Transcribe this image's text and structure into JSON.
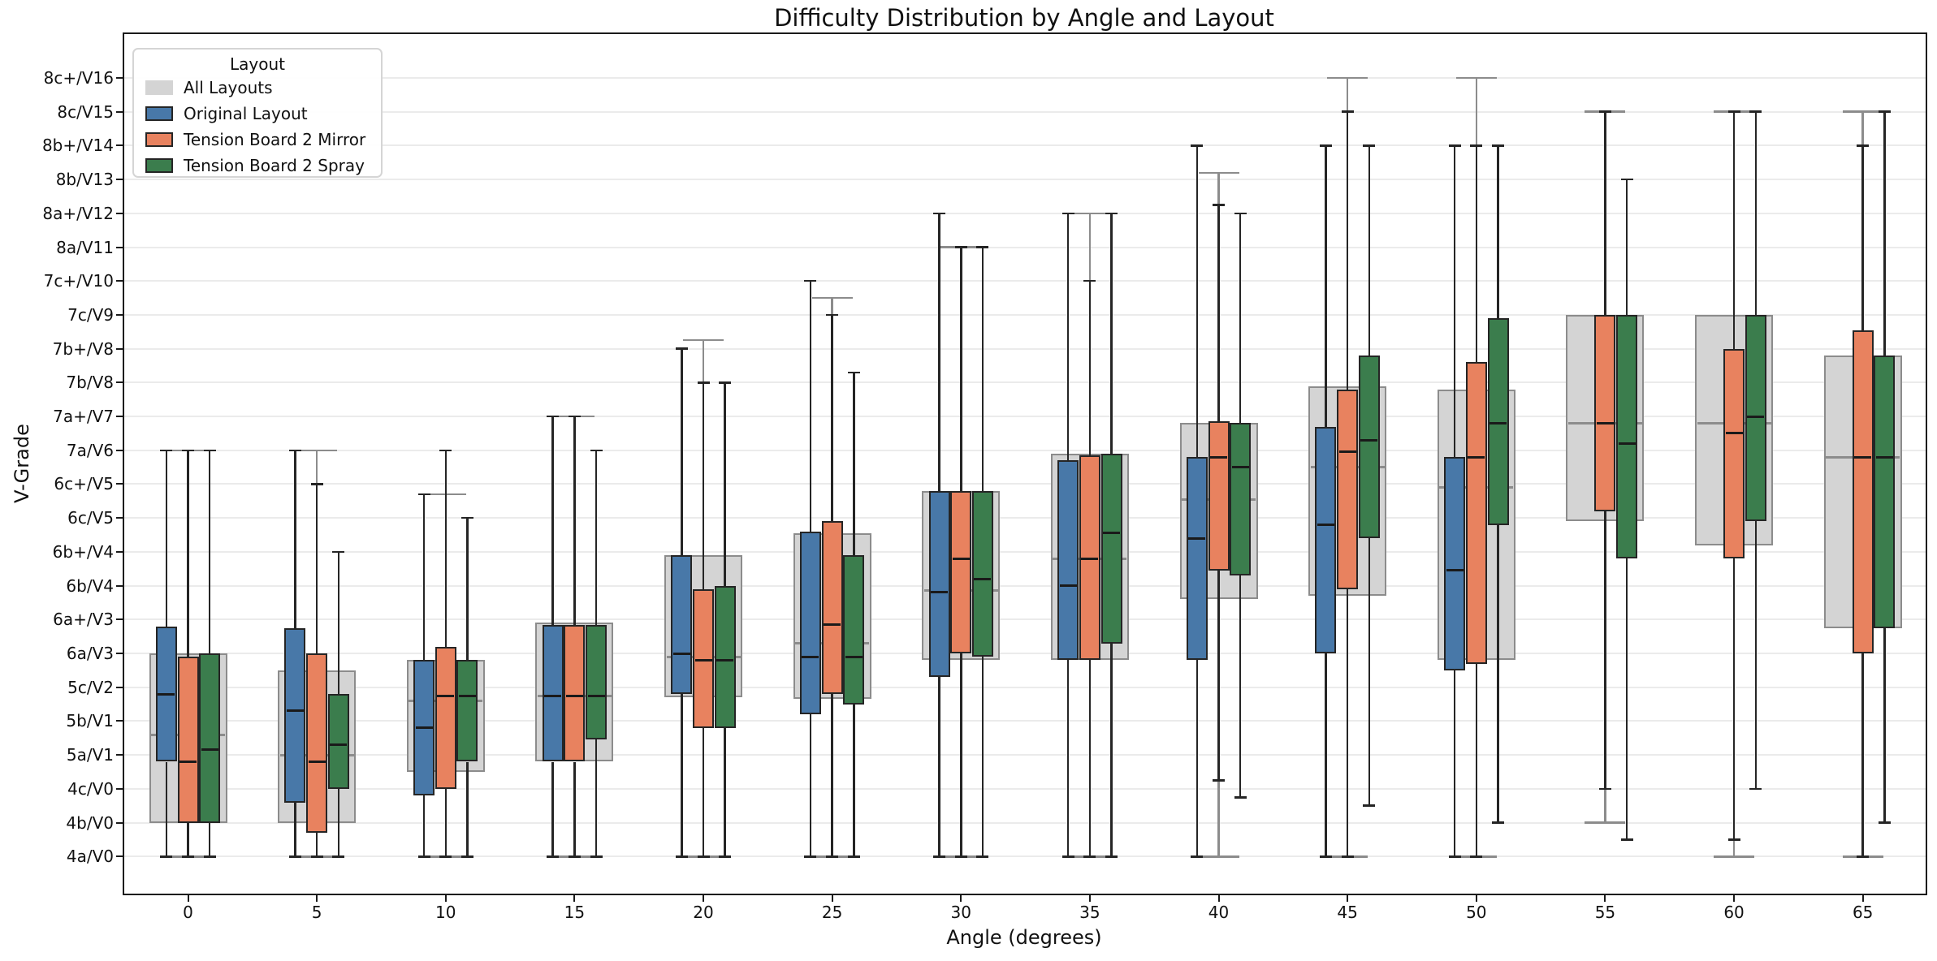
{
  "chart_data": {
    "type": "grouped_boxplot",
    "title": "Difficulty Distribution by Angle and Layout",
    "xlabel": "Angle (degrees)",
    "ylabel": "V-Grade",
    "legend": {
      "title": "Layout",
      "position": "upper-left"
    },
    "grid": "horizontal-light",
    "x_categories": [
      0,
      5,
      10,
      15,
      20,
      25,
      30,
      35,
      40,
      45,
      50,
      55,
      60,
      65
    ],
    "y_tick_labels": [
      "4a/V0",
      "4b/V0",
      "4c/V0",
      "5a/V1",
      "5b/V1",
      "5c/V2",
      "6a/V3",
      "6a+/V3",
      "6b/V4",
      "6b+/V4",
      "6c/V5",
      "6c+/V5",
      "7a/V6",
      "7a+/V7",
      "7b/V8",
      "7b+/V8",
      "7c/V9",
      "7c+/V10",
      "8a/V11",
      "8a+/V12",
      "8b/V13",
      "8b+/V14",
      "8c/V15",
      "8c+/V16"
    ],
    "values_unit": "y_tick_index",
    "box_format": [
      "whisker_min",
      "q1",
      "median",
      "q3",
      "whisker_max"
    ],
    "series": [
      {
        "name": "All Layouts",
        "fill": "#d4d4d4",
        "edge": "#8c8c8c",
        "overlay_background": true,
        "boxes": [
          [
            0,
            1,
            3.6,
            6,
            12
          ],
          [
            0,
            1,
            3,
            5.5,
            12
          ],
          [
            0,
            2.5,
            4.6,
            5.8,
            10.7
          ],
          [
            0,
            2.8,
            4.75,
            6.9,
            13
          ],
          [
            0,
            4.7,
            5.9,
            8.9,
            15.25
          ],
          [
            0,
            4.65,
            6.3,
            9.55,
            16.5
          ],
          [
            0,
            5.8,
            7.85,
            10.8,
            18
          ],
          [
            0,
            5.8,
            8.8,
            11.9,
            19
          ],
          [
            0,
            7.6,
            10.55,
            12.8,
            20.2
          ],
          [
            0,
            7.7,
            11.5,
            13.9,
            23
          ],
          [
            0,
            5.8,
            10.9,
            13.8,
            23
          ],
          [
            1,
            9.9,
            12.8,
            16,
            22
          ],
          [
            0,
            9.2,
            12.8,
            16,
            22
          ],
          [
            0,
            6.75,
            11.8,
            14.8,
            22
          ]
        ]
      },
      {
        "name": "Original Layout",
        "fill": "#4878a8",
        "edge": "#252525",
        "boxes": [
          [
            0,
            2.8,
            4.8,
            6.8,
            12
          ],
          [
            0,
            1.6,
            4.3,
            6.75,
            12
          ],
          [
            0,
            1.8,
            3.8,
            5.8,
            10.7
          ],
          [
            0,
            2.8,
            4.75,
            6.85,
            13
          ],
          [
            0,
            4.8,
            6,
            8.9,
            15
          ],
          [
            0,
            4.2,
            5.9,
            9.6,
            17
          ],
          [
            0,
            5.3,
            7.8,
            10.8,
            19
          ],
          [
            0,
            5.8,
            8,
            11.7,
            19
          ],
          [
            0,
            5.8,
            9.4,
            11.8,
            21
          ],
          [
            0,
            6,
            9.8,
            12.7,
            21
          ],
          [
            0,
            5.5,
            8.45,
            11.8,
            21
          ],
          null,
          null,
          null
        ]
      },
      {
        "name": "Tension Board 2 Mirror",
        "fill": "#e8825f",
        "edge": "#252525",
        "boxes": [
          [
            0,
            1,
            2.8,
            5.9,
            12
          ],
          [
            0,
            0.7,
            2.8,
            6,
            11
          ],
          [
            0,
            2,
            4.75,
            6.2,
            12
          ],
          [
            0,
            2.8,
            4.75,
            6.85,
            13
          ],
          [
            0,
            3.8,
            5.8,
            7.9,
            14
          ],
          [
            0,
            4.8,
            6.85,
            9.9,
            16
          ],
          [
            0,
            6,
            8.8,
            10.8,
            18
          ],
          [
            0,
            5.8,
            8.8,
            11.85,
            17
          ],
          [
            2.25,
            8.45,
            11.8,
            12.85,
            19.25
          ],
          [
            0,
            7.9,
            11.95,
            13.8,
            22
          ],
          [
            0,
            5.7,
            11.8,
            14.6,
            21
          ],
          [
            2,
            10.2,
            12.8,
            16,
            22
          ],
          [
            0.5,
            8.8,
            12.5,
            15,
            22
          ],
          [
            0,
            6,
            11.8,
            15.55,
            21
          ]
        ]
      },
      {
        "name": "Tension Board 2 Spray",
        "fill": "#3b7d4d",
        "edge": "#252525",
        "boxes": [
          [
            0,
            1,
            3.15,
            6,
            12
          ],
          [
            0,
            2,
            3.3,
            4.8,
            9
          ],
          [
            0,
            2.8,
            4.75,
            5.8,
            10
          ],
          [
            0,
            3.45,
            4.75,
            6.85,
            12
          ],
          [
            0,
            3.8,
            5.8,
            8,
            14
          ],
          [
            0,
            4.5,
            5.9,
            8.9,
            14.3
          ],
          [
            0,
            5.9,
            8.2,
            10.8,
            18
          ],
          [
            0,
            6.3,
            9.55,
            11.9,
            19
          ],
          [
            1.75,
            8.3,
            11.5,
            12.8,
            19
          ],
          [
            1.5,
            9.4,
            12.3,
            14.8,
            21
          ],
          [
            1,
            9.8,
            12.8,
            15.9,
            21
          ],
          [
            0.5,
            8.8,
            12.2,
            16,
            20
          ],
          [
            2,
            9.9,
            13,
            16,
            22
          ],
          [
            1,
            6.75,
            11.8,
            14.8,
            22
          ]
        ]
      }
    ]
  }
}
